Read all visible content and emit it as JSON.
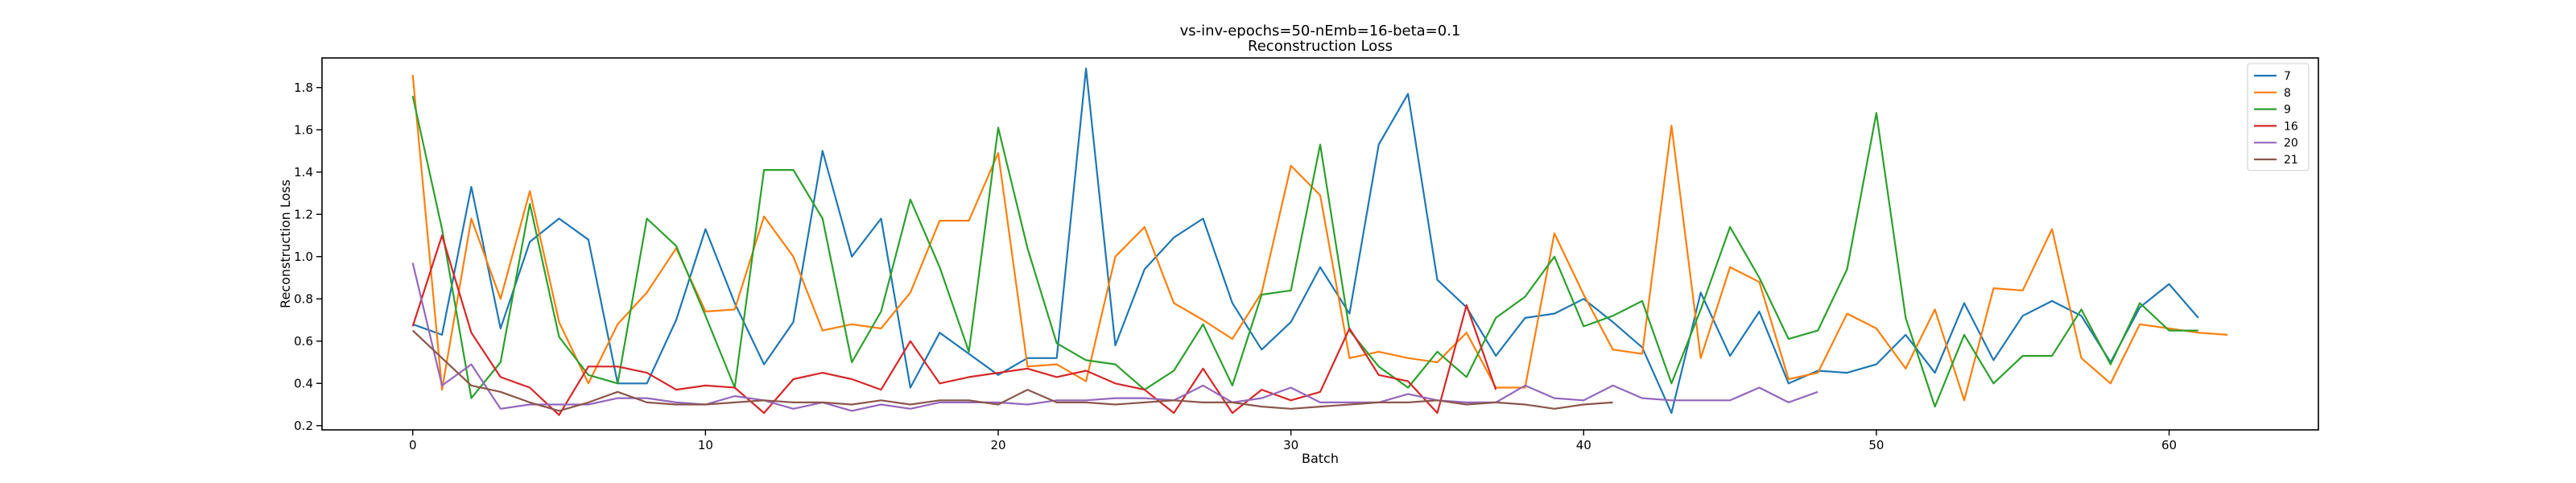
{
  "chart_data": {
    "type": "line",
    "title": "vs-inv-epochs=50-nEmb=16-beta=0.1",
    "subtitle": "Reconstruction Loss",
    "xlabel": "Batch",
    "ylabel": "Reconstruction Loss",
    "xlim": [
      -3.1,
      65.1
    ],
    "ylim": [
      0.18,
      1.94
    ],
    "xticks": [
      0,
      10,
      20,
      30,
      40,
      50,
      60
    ],
    "yticks": [
      0.2,
      0.4,
      0.6,
      0.8,
      1.0,
      1.2,
      1.4,
      1.6,
      1.8
    ],
    "xtick_labels": [
      "0",
      "10",
      "20",
      "30",
      "40",
      "50",
      "60"
    ],
    "ytick_labels": [
      "0.2",
      "0.4",
      "0.6",
      "0.8",
      "1.0",
      "1.2",
      "1.4",
      "1.6",
      "1.8"
    ],
    "grid": false,
    "legend_position": "top-right",
    "series": [
      {
        "name": "7",
        "color": "#1f77b4",
        "values": [
          0.68,
          0.63,
          1.33,
          0.66,
          1.07,
          1.18,
          1.08,
          0.4,
          0.4,
          0.7,
          1.13,
          0.78,
          0.49,
          0.69,
          1.5,
          1.0,
          1.18,
          0.38,
          0.64,
          0.54,
          0.44,
          0.52,
          0.52,
          1.89,
          0.58,
          0.94,
          1.09,
          1.18,
          0.78,
          0.56,
          0.69,
          0.95,
          0.73,
          1.53,
          1.77,
          0.89,
          0.76,
          0.53,
          0.71,
          0.73,
          0.8,
          0.69,
          0.57,
          0.26,
          0.83,
          0.53,
          0.74,
          0.4,
          0.46,
          0.45,
          0.49,
          0.63,
          0.45,
          0.78,
          0.51,
          0.72,
          0.79,
          0.72,
          0.5,
          0.76,
          0.87,
          0.71
        ]
      },
      {
        "name": "8",
        "color": "#ff7f0e",
        "values": [
          1.86,
          0.37,
          1.18,
          0.8,
          1.31,
          0.69,
          0.4,
          0.68,
          0.83,
          1.04,
          0.74,
          0.75,
          1.19,
          1.0,
          0.65,
          0.68,
          0.66,
          0.83,
          1.17,
          1.17,
          1.49,
          0.48,
          0.49,
          0.41,
          1.0,
          1.14,
          0.78,
          0.7,
          0.61,
          0.83,
          1.43,
          1.29,
          0.52,
          0.55,
          0.52,
          0.5,
          0.64,
          0.38,
          0.38,
          1.11,
          0.82,
          0.56,
          0.54,
          1.62,
          0.52,
          0.95,
          0.88,
          0.42,
          0.45,
          0.73,
          0.66,
          0.47,
          0.75,
          0.32,
          0.85,
          0.84,
          1.13,
          0.52,
          0.4,
          0.68,
          0.66,
          0.64,
          0.63
        ]
      },
      {
        "name": "9",
        "color": "#2ca02c",
        "values": [
          1.76,
          1.13,
          0.33,
          0.5,
          1.25,
          0.62,
          0.44,
          0.4,
          1.18,
          1.05,
          0.72,
          0.38,
          1.41,
          1.41,
          1.18,
          0.5,
          0.74,
          1.27,
          0.95,
          0.55,
          1.61,
          1.04,
          0.59,
          0.51,
          0.49,
          0.37,
          0.46,
          0.68,
          0.39,
          0.82,
          0.84,
          1.53,
          0.65,
          0.48,
          0.38,
          0.55,
          0.43,
          0.71,
          0.81,
          1.0,
          0.67,
          0.72,
          0.79,
          0.4,
          0.75,
          1.14,
          0.9,
          0.61,
          0.65,
          0.94,
          1.68,
          0.71,
          0.29,
          0.63,
          0.4,
          0.53,
          0.53,
          0.75,
          0.49,
          0.78,
          0.65,
          0.65
        ]
      },
      {
        "name": "16",
        "color": "#d62728",
        "values": [
          0.67,
          1.1,
          0.64,
          0.43,
          0.38,
          0.25,
          0.48,
          0.48,
          0.45,
          0.37,
          0.39,
          0.38,
          0.26,
          0.42,
          0.45,
          0.42,
          0.37,
          0.6,
          0.4,
          0.43,
          0.45,
          0.47,
          0.43,
          0.46,
          0.4,
          0.37,
          0.26,
          0.47,
          0.26,
          0.37,
          0.32,
          0.36,
          0.66,
          0.44,
          0.41,
          0.26,
          0.77,
          0.37
        ]
      },
      {
        "name": "20",
        "color": "#9467bd",
        "values": [
          0.97,
          0.39,
          0.49,
          0.28,
          0.3,
          0.3,
          0.3,
          0.33,
          0.33,
          0.31,
          0.3,
          0.34,
          0.32,
          0.28,
          0.31,
          0.27,
          0.3,
          0.28,
          0.31,
          0.31,
          0.31,
          0.3,
          0.32,
          0.32,
          0.33,
          0.33,
          0.32,
          0.39,
          0.31,
          0.33,
          0.38,
          0.31,
          0.31,
          0.31,
          0.35,
          0.32,
          0.31,
          0.31,
          0.39,
          0.33,
          0.32,
          0.39,
          0.33,
          0.32,
          0.32,
          0.32,
          0.38,
          0.31,
          0.36
        ]
      },
      {
        "name": "21",
        "color": "#8c564b",
        "values": [
          0.65,
          0.52,
          0.39,
          0.36,
          0.31,
          0.27,
          0.31,
          0.36,
          0.31,
          0.3,
          0.3,
          0.31,
          0.32,
          0.31,
          0.31,
          0.3,
          0.32,
          0.3,
          0.32,
          0.32,
          0.3,
          0.37,
          0.31,
          0.31,
          0.3,
          0.31,
          0.32,
          0.31,
          0.31,
          0.29,
          0.28,
          0.29,
          0.3,
          0.31,
          0.31,
          0.32,
          0.3,
          0.31,
          0.3,
          0.28,
          0.3,
          0.31
        ]
      }
    ]
  }
}
